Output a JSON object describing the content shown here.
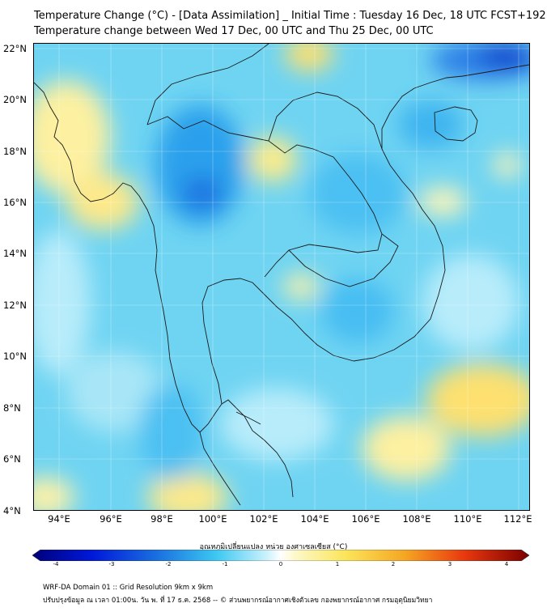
{
  "header": {
    "line1": "Temperature Change (°C) - [Data Assimilation] _ Initial Time : Tuesday 16 Dec, 18 UTC FCST+192",
    "line2": "Temperature change between Wed 17 Dec, 00 UTC and Thu 25 Dec, 00 UTC"
  },
  "map": {
    "lat_labels": [
      "22°N",
      "20°N",
      "18°N",
      "16°N",
      "14°N",
      "12°N",
      "10°N",
      "8°N",
      "6°N",
      "4°N"
    ],
    "lon_labels": [
      "94°E",
      "96°E",
      "98°E",
      "100°E",
      "102°E",
      "104°E",
      "106°E",
      "108°E",
      "110°E",
      "112°E"
    ],
    "lat_range": [
      4,
      22.2
    ],
    "lon_range": [
      93,
      112.4
    ]
  },
  "colorbar": {
    "title": "อุณหภูมิเปลี่ยนแปลง หน่วย องศาเซลเซียส (°C)",
    "tick_labels": [
      "-4",
      "-3",
      "-2",
      "-1",
      "0",
      "1",
      "2",
      "3",
      "4"
    ],
    "range": [
      -4,
      4
    ]
  },
  "footer": {
    "line1": "WRF-DA Domain 01 :: Grid Resolution 9km x 9km",
    "line2": "ปรับปรุงข้อมูล ณ เวลา 01:00น. วัน พ. ที่ 17 ธ.ค. 2568 -- © ส่วนพยากรณ์อากาศเชิงตัวเลข กองพยากรณ์อากาศ กรมอุตุนิยมวิทยา"
  },
  "colors": {
    "deep_blue": "#0033cc",
    "mid_blue": "#2e9ef0",
    "light_blue": "#6fd4f2",
    "pale_blue": "#b8ecfa",
    "pale_yellow": "#fdf5a0",
    "yellow": "#fbe55a",
    "orange": "#f7c42a"
  }
}
